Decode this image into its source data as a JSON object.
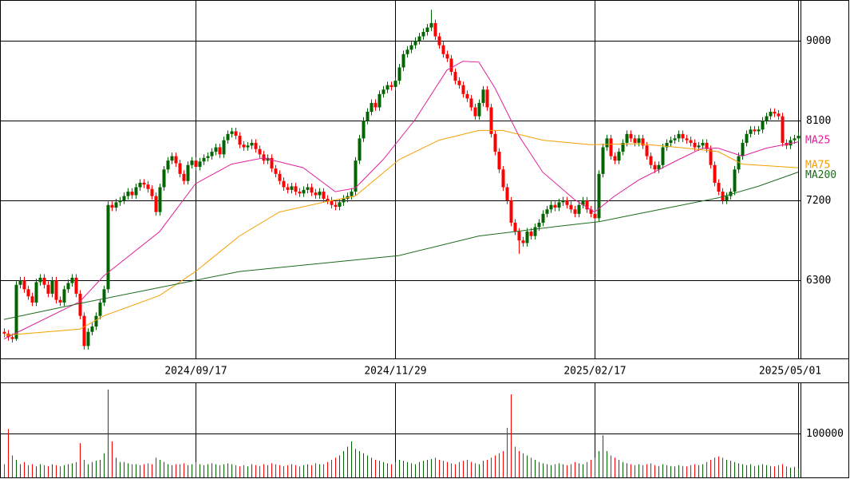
{
  "chart_data": {
    "type": "candlestick",
    "xlim": [
      -1,
      199.6
    ],
    "xticks": [
      {
        "value": 48,
        "label": "2024/09/17"
      },
      {
        "value": 98,
        "label": "2024/11/29"
      },
      {
        "value": 148,
        "label": "2025/02/17"
      },
      {
        "value": 199,
        "label": "2025/05/01"
      }
    ],
    "ylim": [
      5420,
      9460
    ],
    "yticks": [
      6300,
      7200,
      8100,
      9000
    ],
    "vlim": [
      0,
      214500
    ],
    "vticks": [
      100000
    ],
    "up_color": "#006400",
    "down_color": "#ff0000",
    "grid": true,
    "ohlc": [
      [
        5720,
        5760,
        5660,
        5700
      ],
      [
        5700,
        5740,
        5620,
        5660
      ],
      [
        5660,
        5700,
        5600,
        5640
      ],
      [
        5640,
        6290,
        5620,
        6250
      ],
      [
        6250,
        6340,
        6210,
        6300
      ],
      [
        6300,
        6340,
        6160,
        6200
      ],
      [
        6200,
        6240,
        6080,
        6120
      ],
      [
        6120,
        6160,
        6010,
        6050
      ],
      [
        6050,
        6320,
        6010,
        6280
      ],
      [
        6280,
        6370,
        6240,
        6330
      ],
      [
        6330,
        6370,
        6210,
        6250
      ],
      [
        6250,
        6290,
        6110,
        6150
      ],
      [
        6150,
        6340,
        6110,
        6300
      ],
      [
        6300,
        6340,
        6040,
        6080
      ],
      [
        6080,
        6120,
        6010,
        6050
      ],
      [
        6050,
        6240,
        6010,
        6200
      ],
      [
        6200,
        6310,
        6160,
        6270
      ],
      [
        6270,
        6370,
        6230,
        6330
      ],
      [
        6330,
        6370,
        6110,
        6150
      ],
      [
        6150,
        6190,
        5860,
        5900
      ],
      [
        5900,
        5940,
        5520,
        5560
      ],
      [
        5560,
        5760,
        5520,
        5720
      ],
      [
        5720,
        5820,
        5680,
        5780
      ],
      [
        5780,
        5940,
        5740,
        5900
      ],
      [
        5900,
        6090,
        5860,
        6050
      ],
      [
        6050,
        6240,
        6010,
        6200
      ],
      [
        6200,
        7190,
        6160,
        7150
      ],
      [
        7150,
        7190,
        7080,
        7120
      ],
      [
        7120,
        7220,
        7080,
        7180
      ],
      [
        7180,
        7240,
        7140,
        7200
      ],
      [
        7200,
        7290,
        7160,
        7250
      ],
      [
        7250,
        7340,
        7210,
        7300
      ],
      [
        7300,
        7340,
        7220,
        7260
      ],
      [
        7260,
        7390,
        7220,
        7350
      ],
      [
        7350,
        7440,
        7310,
        7400
      ],
      [
        7400,
        7440,
        7340,
        7380
      ],
      [
        7380,
        7420,
        7290,
        7330
      ],
      [
        7330,
        7370,
        7210,
        7250
      ],
      [
        7250,
        7290,
        7030,
        7070
      ],
      [
        7070,
        7390,
        7030,
        7350
      ],
      [
        7350,
        7590,
        7310,
        7550
      ],
      [
        7550,
        7690,
        7510,
        7650
      ],
      [
        7650,
        7740,
        7610,
        7700
      ],
      [
        7700,
        7740,
        7580,
        7620
      ],
      [
        7620,
        7660,
        7460,
        7500
      ],
      [
        7500,
        7540,
        7380,
        7420
      ],
      [
        7420,
        7640,
        7380,
        7600
      ],
      [
        7600,
        7690,
        7560,
        7650
      ],
      [
        7650,
        7690,
        7540,
        7580
      ],
      [
        7580,
        7680,
        7540,
        7640
      ],
      [
        7640,
        7720,
        7600,
        7680
      ],
      [
        7680,
        7740,
        7640,
        7700
      ],
      [
        7700,
        7790,
        7660,
        7750
      ],
      [
        7750,
        7840,
        7710,
        7800
      ],
      [
        7800,
        7840,
        7680,
        7720
      ],
      [
        7720,
        7920,
        7680,
        7880
      ],
      [
        7880,
        7990,
        7840,
        7950
      ],
      [
        7950,
        8020,
        7910,
        7980
      ],
      [
        7980,
        8020,
        7890,
        7930
      ],
      [
        7930,
        7970,
        7790,
        7830
      ],
      [
        7830,
        7870,
        7760,
        7800
      ],
      [
        7800,
        7860,
        7760,
        7820
      ],
      [
        7820,
        7890,
        7780,
        7850
      ],
      [
        7850,
        7890,
        7740,
        7780
      ],
      [
        7780,
        7820,
        7680,
        7720
      ],
      [
        7720,
        7760,
        7610,
        7650
      ],
      [
        7650,
        7720,
        7610,
        7680
      ],
      [
        7680,
        7720,
        7520,
        7560
      ],
      [
        7560,
        7600,
        7460,
        7500
      ],
      [
        7500,
        7540,
        7380,
        7420
      ],
      [
        7420,
        7460,
        7310,
        7350
      ],
      [
        7350,
        7390,
        7280,
        7320
      ],
      [
        7320,
        7400,
        7280,
        7360
      ],
      [
        7360,
        7400,
        7260,
        7300
      ],
      [
        7300,
        7340,
        7240,
        7280
      ],
      [
        7280,
        7360,
        7240,
        7320
      ],
      [
        7320,
        7390,
        7280,
        7350
      ],
      [
        7350,
        7390,
        7250,
        7290
      ],
      [
        7290,
        7330,
        7220,
        7260
      ],
      [
        7260,
        7340,
        7220,
        7300
      ],
      [
        7300,
        7340,
        7180,
        7220
      ],
      [
        7220,
        7260,
        7160,
        7200
      ],
      [
        7200,
        7240,
        7110,
        7150
      ],
      [
        7150,
        7190,
        7090,
        7130
      ],
      [
        7130,
        7220,
        7090,
        7180
      ],
      [
        7180,
        7260,
        7140,
        7220
      ],
      [
        7220,
        7290,
        7180,
        7250
      ],
      [
        7250,
        7340,
        7210,
        7300
      ],
      [
        7300,
        7690,
        7260,
        7650
      ],
      [
        7650,
        7940,
        7610,
        7900
      ],
      [
        7900,
        8140,
        7860,
        8100
      ],
      [
        8100,
        8240,
        8060,
        8200
      ],
      [
        8200,
        8340,
        8160,
        8300
      ],
      [
        8300,
        8340,
        8210,
        8250
      ],
      [
        8250,
        8440,
        8210,
        8400
      ],
      [
        8400,
        8490,
        8360,
        8450
      ],
      [
        8450,
        8540,
        8410,
        8500
      ],
      [
        8500,
        8540,
        8440,
        8480
      ],
      [
        8480,
        8590,
        8440,
        8550
      ],
      [
        8550,
        8740,
        8510,
        8700
      ],
      [
        8700,
        8890,
        8660,
        8850
      ],
      [
        8850,
        8940,
        8810,
        8900
      ],
      [
        8900,
        8990,
        8860,
        8950
      ],
      [
        8950,
        9040,
        8910,
        9000
      ],
      [
        9000,
        9090,
        8960,
        9050
      ],
      [
        9050,
        9140,
        9010,
        9100
      ],
      [
        9100,
        9190,
        9060,
        9150
      ],
      [
        9150,
        9350,
        9110,
        9200
      ],
      [
        9200,
        9240,
        9010,
        9050
      ],
      [
        9050,
        9090,
        8910,
        8950
      ],
      [
        8950,
        8990,
        8810,
        8850
      ],
      [
        8850,
        8890,
        8760,
        8800
      ],
      [
        8800,
        8840,
        8610,
        8650
      ],
      [
        8650,
        8690,
        8510,
        8550
      ],
      [
        8550,
        8590,
        8460,
        8500
      ],
      [
        8500,
        8540,
        8360,
        8400
      ],
      [
        8400,
        8440,
        8310,
        8350
      ],
      [
        8350,
        8390,
        8210,
        8250
      ],
      [
        8250,
        8290,
        8110,
        8150
      ],
      [
        8150,
        8340,
        8110,
        8300
      ],
      [
        8300,
        8490,
        8260,
        8450
      ],
      [
        8450,
        8490,
        8210,
        8250
      ],
      [
        8250,
        8290,
        7910,
        7950
      ],
      [
        7950,
        7990,
        7710,
        7750
      ],
      [
        7750,
        7790,
        7510,
        7550
      ],
      [
        7550,
        7590,
        7310,
        7350
      ],
      [
        7350,
        7390,
        7160,
        7200
      ],
      [
        7200,
        7240,
        6910,
        6950
      ],
      [
        6950,
        6990,
        6810,
        6850
      ],
      [
        6850,
        6890,
        6600,
        6750
      ],
      [
        6750,
        6790,
        6680,
        6720
      ],
      [
        6720,
        6890,
        6680,
        6850
      ],
      [
        6850,
        6890,
        6760,
        6800
      ],
      [
        6800,
        6940,
        6760,
        6900
      ],
      [
        6900,
        6990,
        6860,
        6950
      ],
      [
        6950,
        7090,
        6910,
        7050
      ],
      [
        7050,
        7140,
        7010,
        7100
      ],
      [
        7100,
        7190,
        7060,
        7150
      ],
      [
        7150,
        7190,
        7080,
        7120
      ],
      [
        7120,
        7220,
        7080,
        7180
      ],
      [
        7180,
        7240,
        7140,
        7200
      ],
      [
        7200,
        7240,
        7110,
        7150
      ],
      [
        7150,
        7190,
        7060,
        7100
      ],
      [
        7100,
        7140,
        7010,
        7050
      ],
      [
        7050,
        7190,
        7010,
        7150
      ],
      [
        7150,
        7240,
        7110,
        7200
      ],
      [
        7200,
        7240,
        7060,
        7100
      ],
      [
        7100,
        7140,
        7010,
        7050
      ],
      [
        7050,
        7090,
        6960,
        7000
      ],
      [
        7000,
        7540,
        6960,
        7500
      ],
      [
        7500,
        7840,
        7460,
        7800
      ],
      [
        7800,
        7940,
        7760,
        7900
      ],
      [
        7900,
        7940,
        7660,
        7700
      ],
      [
        7700,
        7740,
        7610,
        7650
      ],
      [
        7650,
        7790,
        7610,
        7750
      ],
      [
        7750,
        7890,
        7710,
        7850
      ],
      [
        7850,
        7990,
        7810,
        7950
      ],
      [
        7950,
        7990,
        7860,
        7900
      ],
      [
        7900,
        7940,
        7810,
        7850
      ],
      [
        7850,
        7940,
        7810,
        7900
      ],
      [
        7900,
        7940,
        7780,
        7820
      ],
      [
        7820,
        7860,
        7660,
        7700
      ],
      [
        7700,
        7740,
        7560,
        7600
      ],
      [
        7600,
        7640,
        7510,
        7550
      ],
      [
        7550,
        7640,
        7510,
        7600
      ],
      [
        7600,
        7840,
        7560,
        7800
      ],
      [
        7800,
        7890,
        7760,
        7850
      ],
      [
        7850,
        7920,
        7810,
        7880
      ],
      [
        7880,
        7940,
        7840,
        7900
      ],
      [
        7900,
        7990,
        7860,
        7950
      ],
      [
        7950,
        7990,
        7860,
        7900
      ],
      [
        7900,
        7940,
        7840,
        7880
      ],
      [
        7880,
        7920,
        7810,
        7850
      ],
      [
        7850,
        7890,
        7760,
        7800
      ],
      [
        7800,
        7860,
        7760,
        7820
      ],
      [
        7820,
        7890,
        7780,
        7850
      ],
      [
        7850,
        7890,
        7740,
        7780
      ],
      [
        7780,
        7820,
        7560,
        7600
      ],
      [
        7600,
        7640,
        7360,
        7400
      ],
      [
        7400,
        7440,
        7260,
        7300
      ],
      [
        7300,
        7340,
        7160,
        7200
      ],
      [
        7200,
        7290,
        7160,
        7250
      ],
      [
        7250,
        7340,
        7210,
        7300
      ],
      [
        7300,
        7590,
        7260,
        7550
      ],
      [
        7550,
        7740,
        7510,
        7700
      ],
      [
        7700,
        7890,
        7660,
        7850
      ],
      [
        7850,
        7990,
        7810,
        7950
      ],
      [
        7950,
        8040,
        7910,
        8000
      ],
      [
        8000,
        8040,
        7940,
        7980
      ],
      [
        7980,
        8040,
        7940,
        8000
      ],
      [
        8000,
        8140,
        7960,
        8100
      ],
      [
        8100,
        8190,
        8060,
        8150
      ],
      [
        8150,
        8240,
        8110,
        8200
      ],
      [
        8200,
        8240,
        8140,
        8180
      ],
      [
        8180,
        8220,
        8110,
        8150
      ],
      [
        8150,
        8190,
        7810,
        7850
      ],
      [
        7850,
        7890,
        7780,
        7820
      ],
      [
        7820,
        7920,
        7780,
        7880
      ],
      [
        7880,
        7940,
        7840,
        7900
      ],
      [
        7900,
        7970,
        7860,
        7930
      ]
    ],
    "volumes": [
      30000,
      110000,
      50000,
      40000,
      30000,
      35000,
      28000,
      30000,
      25000,
      30000,
      28000,
      26000,
      30000,
      28000,
      25000,
      28000,
      30000,
      32000,
      35000,
      78000,
      40000,
      30000,
      35000,
      38000,
      40000,
      55000,
      200000,
      82000,
      45000,
      35000,
      35000,
      32000,
      30000,
      30000,
      28000,
      30000,
      32000,
      30000,
      45000,
      40000,
      35000,
      30000,
      28000,
      30000,
      30000,
      32000,
      28000,
      30000,
      35000,
      30000,
      28000,
      30000,
      32000,
      30000,
      28000,
      30000,
      32000,
      30000,
      28000,
      25000,
      28000,
      25000,
      30000,
      28000,
      26000,
      30000,
      28000,
      32000,
      30000,
      28000,
      26000,
      28000,
      30000,
      28000,
      25000,
      28000,
      30000,
      28000,
      32000,
      30000,
      30000,
      35000,
      40000,
      45000,
      50000,
      60000,
      70000,
      82000,
      65000,
      60000,
      55000,
      50000,
      45000,
      40000,
      38000,
      35000,
      32000,
      30000,
      35000,
      40000,
      38000,
      35000,
      32000,
      30000,
      35000,
      38000,
      40000,
      42000,
      45000,
      40000,
      38000,
      35000,
      32000,
      30000,
      35000,
      38000,
      40000,
      35000,
      32000,
      30000,
      38000,
      40000,
      45000,
      50000,
      55000,
      60000,
      113000,
      189000,
      70000,
      60000,
      55000,
      50000,
      45000,
      40000,
      35000,
      32000,
      30000,
      28000,
      30000,
      32000,
      30000,
      28000,
      30000,
      35000,
      32000,
      30000,
      35000,
      40000,
      45000,
      60000,
      96000,
      60000,
      50000,
      45000,
      40000,
      35000,
      32000,
      30000,
      28000,
      30000,
      28000,
      30000,
      32000,
      28000,
      26000,
      30000,
      28000,
      26000,
      25000,
      28000,
      26000,
      25000,
      28000,
      30000,
      28000,
      30000,
      35000,
      40000,
      45000,
      48000,
      45000,
      40000,
      38000,
      35000,
      32000,
      30000,
      28000,
      30000,
      26000,
      28000,
      30000,
      28000,
      26000,
      25000,
      28000,
      30000,
      25000,
      22000,
      24000,
      20000
    ],
    "series": [
      {
        "name": "MA25",
        "color": "#e0209a",
        "x": [
          0,
          19,
          25,
          39,
          48,
          57,
          65,
          75,
          83,
          88,
          95,
          103,
          111,
          115,
          119,
          123,
          129,
          135,
          143,
          148,
          153,
          159,
          169,
          175,
          179,
          185,
          191,
          199
        ],
        "values": [
          5640,
          6060,
          6350,
          6850,
          7390,
          7610,
          7680,
          7570,
          7300,
          7340,
          7660,
          8110,
          8670,
          8770,
          8760,
          8470,
          7930,
          7520,
          7210,
          7070,
          7250,
          7430,
          7660,
          7790,
          7790,
          7700,
          7790,
          7860
        ]
      },
      {
        "name": "MA75",
        "color": "#f5a000",
        "x": [
          0,
          19,
          25,
          39,
          48,
          59,
          69,
          81,
          88,
          99,
          109,
          119,
          125,
          135,
          147,
          159,
          171,
          179,
          185,
          199
        ],
        "values": [
          5680,
          5750,
          5900,
          6130,
          6400,
          6800,
          7070,
          7190,
          7250,
          7660,
          7880,
          7990,
          7990,
          7880,
          7830,
          7840,
          7790,
          7750,
          7610,
          7570
        ]
      },
      {
        "name": "MA200",
        "color": "#1e6b1e",
        "x": [
          0,
          19,
          39,
          59,
          79,
          99,
          119,
          139,
          149,
          159,
          179,
          189,
          199
        ],
        "values": [
          5860,
          6040,
          6220,
          6400,
          6490,
          6580,
          6800,
          6910,
          6960,
          7050,
          7230,
          7360,
          7520
        ]
      }
    ]
  }
}
